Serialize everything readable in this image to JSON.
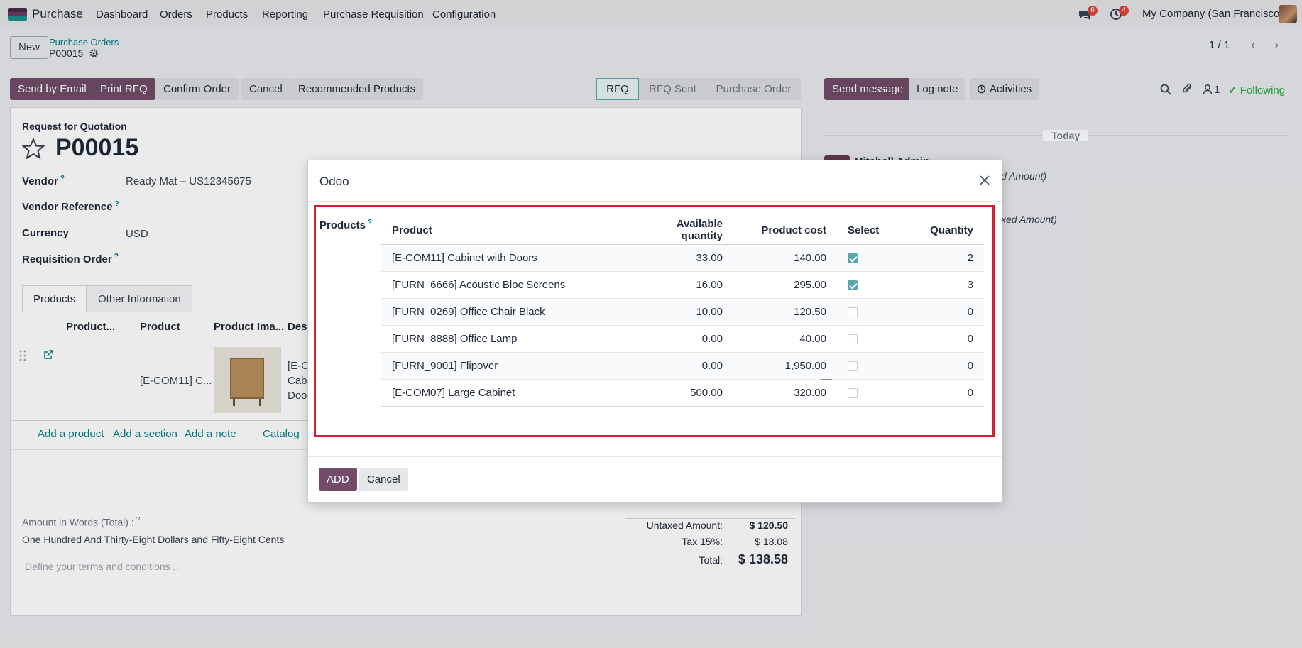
{
  "topnav": {
    "app_name": "Purchase",
    "menu": [
      "Dashboard",
      "Orders",
      "Products",
      "Reporting",
      "Purchase Requisition",
      "Configuration"
    ],
    "messages_badge": "6",
    "activities_badge": "4",
    "company": "My Company (San Francisco)"
  },
  "control_panel": {
    "new_label": "New",
    "breadcrumb": "Purchase Orders",
    "record_name": "P00015",
    "pager": "1 / 1"
  },
  "actions": {
    "send_by_email": "Send by Email",
    "print_rfq": "Print RFQ",
    "confirm_order": "Confirm Order",
    "cancel": "Cancel",
    "recommended_products": "Recommended Products"
  },
  "statusbar": [
    "RFQ",
    "RFQ Sent",
    "Purchase Order"
  ],
  "chatter": {
    "send_message": "Send message",
    "log_note": "Log note",
    "activities": "Activities",
    "followers_count": "1",
    "following": "Following",
    "today": "Today",
    "author": "Mitchell Admin",
    "msg1": "d Amount)",
    "msg2": "xed Amount)"
  },
  "form": {
    "doc_type": "Request for Quotation",
    "name": "P00015",
    "vendor_label": "Vendor",
    "vendor_value": "Ready Mat – US12345675",
    "vendor_ref_label": "Vendor Reference",
    "currency_label": "Currency",
    "currency_value": "USD",
    "requisition_label": "Requisition Order",
    "tabs": [
      "Products",
      "Other Information"
    ],
    "col_headers": [
      "Product...",
      "Product",
      "Product Ima...",
      "Desc"
    ],
    "row_product": "[E-COM11] C...",
    "row_desc": [
      "[E-CO",
      "Cabi",
      "Doo"
    ],
    "links": [
      "Add a product",
      "Add a section",
      "Add a note",
      "Catalog"
    ],
    "amount_words_label": "Amount in Words (Total) :",
    "amount_words": "One Hundred And Thirty-Eight Dollars and Fifty-Eight Cents",
    "terms_placeholder": "Define your terms and conditions ...",
    "untaxed_label": "Untaxed Amount:",
    "untaxed_value": "$ 120.50",
    "tax_label": "Tax 15%:",
    "tax_value": "$ 18.08",
    "total_label": "Total:",
    "total_value": "$ 138.58"
  },
  "modal": {
    "title": "Odoo",
    "field_label": "Products",
    "headers": [
      "Product",
      "Available quantity",
      "Product cost",
      "Select",
      "Quantity"
    ],
    "rows": [
      {
        "product": "[E-COM11] Cabinet with Doors",
        "available": "33.00",
        "cost": "140.00",
        "selected": true,
        "qty": "2"
      },
      {
        "product": "[FURN_6666] Acoustic Bloc Screens",
        "available": "16.00",
        "cost": "295.00",
        "selected": true,
        "qty": "3"
      },
      {
        "product": "[FURN_0269] Office Chair Black",
        "available": "10.00",
        "cost": "120.50",
        "selected": false,
        "qty": "0"
      },
      {
        "product": "[FURN_8888] Office Lamp",
        "available": "0.00",
        "cost": "40.00",
        "selected": false,
        "qty": "0"
      },
      {
        "product": "[FURN_9001] Flipover",
        "available": "0.00",
        "cost": "1,950.00",
        "selected": false,
        "qty": "0"
      },
      {
        "product": "[E-COM07] Large Cabinet",
        "available": "500.00",
        "cost": "320.00",
        "selected": false,
        "qty": "0"
      }
    ],
    "footer_dash": "—",
    "add_label": "ADD",
    "cancel_label": "Cancel"
  }
}
